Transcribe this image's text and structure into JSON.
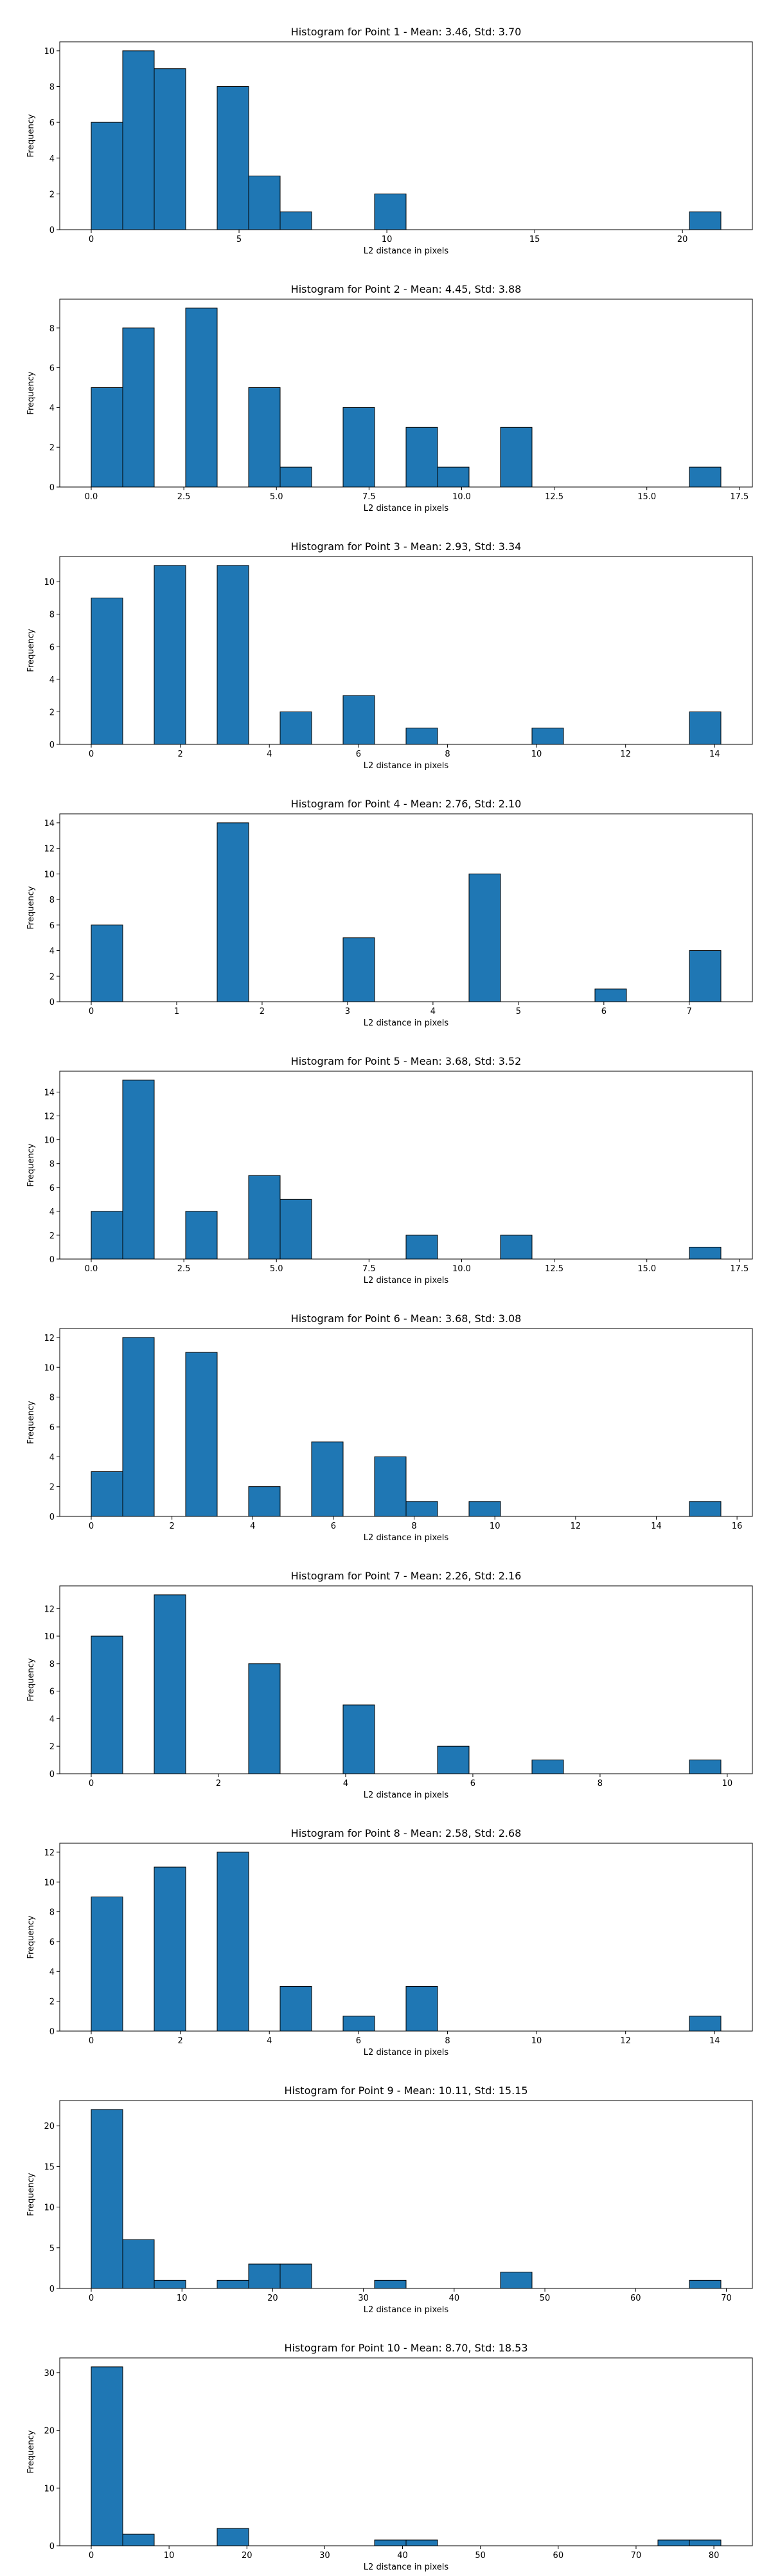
{
  "chart_data": [
    {
      "type": "histogram",
      "title": "Histogram for Point 1 - Mean: 3.46, Std: 3.70",
      "xlabel": "L2 distance in pixels",
      "ylabel": "Frequency",
      "color": "#1f77b4",
      "edgecolor": "#000000",
      "bins": [
        0,
        1.065,
        2.13,
        3.195,
        4.26,
        5.325,
        6.39,
        7.455,
        8.52,
        9.585,
        10.65,
        11.715,
        12.78,
        13.845,
        14.91,
        15.975,
        17.04,
        18.105,
        19.17,
        20.235,
        21.3
      ],
      "values": [
        6,
        10,
        9,
        0,
        8,
        3,
        1,
        0,
        0,
        2,
        0,
        0,
        0,
        0,
        0,
        0,
        0,
        0,
        0,
        1
      ],
      "xlim": [
        -1.065,
        22.365
      ],
      "ylim": [
        0,
        10.5
      ],
      "xticks": [
        0,
        5,
        10,
        15,
        20
      ],
      "yticks": [
        0,
        2,
        4,
        6,
        8,
        10
      ]
    },
    {
      "type": "histogram",
      "title": "Histogram for Point 2 - Mean: 4.45, Std: 3.88",
      "xlabel": "L2 distance in pixels",
      "ylabel": "Frequency",
      "color": "#1f77b4",
      "edgecolor": "#000000",
      "bins": [
        0,
        0.85,
        1.7,
        2.55,
        3.4,
        4.25,
        5.1,
        5.95,
        6.8,
        7.65,
        8.5,
        9.35,
        10.2,
        11.05,
        11.9,
        12.75,
        13.6,
        14.45,
        15.3,
        16.15,
        17
      ],
      "values": [
        5,
        8,
        0,
        9,
        0,
        5,
        1,
        0,
        4,
        0,
        3,
        1,
        0,
        3,
        0,
        0,
        0,
        0,
        0,
        1
      ],
      "xlim": [
        -0.85,
        17.85
      ],
      "ylim": [
        0,
        9.45
      ],
      "xticks": [
        {
          "value": 0,
          "label": "0.0"
        },
        2.5,
        {
          "value": 5,
          "label": "5.0"
        },
        7.5,
        {
          "value": 10,
          "label": "10.0"
        },
        12.5,
        {
          "value": 15,
          "label": "15.0"
        },
        17.5
      ],
      "yticks": [
        0,
        2,
        4,
        6,
        8
      ]
    },
    {
      "type": "histogram",
      "title": "Histogram for Point 3 - Mean: 2.93, Std: 3.34",
      "xlabel": "L2 distance in pixels",
      "ylabel": "Frequency",
      "color": "#1f77b4",
      "edgecolor": "#000000",
      "bins": [
        0,
        0.707,
        1.414,
        2.121,
        2.828,
        3.535,
        4.242,
        4.949,
        5.656,
        6.363,
        7.07,
        7.777,
        8.484,
        9.191,
        9.898,
        10.605,
        11.312,
        12.019,
        12.726,
        13.433,
        14.14
      ],
      "values": [
        9,
        0,
        11,
        0,
        11,
        0,
        2,
        0,
        3,
        0,
        1,
        0,
        0,
        0,
        1,
        0,
        0,
        0,
        0,
        2
      ],
      "xlim": [
        -0.707,
        14.847
      ],
      "ylim": [
        0,
        11.55
      ],
      "xticks": [
        0,
        2,
        4,
        6,
        8,
        10,
        12,
        14
      ],
      "yticks": [
        0,
        2,
        4,
        6,
        8,
        10
      ]
    },
    {
      "type": "histogram",
      "title": "Histogram for Point 4 - Mean: 2.76, Std: 2.10",
      "xlabel": "L2 distance in pixels",
      "ylabel": "Frequency",
      "color": "#1f77b4",
      "edgecolor": "#000000",
      "bins": [
        0,
        0.3685,
        0.737,
        1.1055,
        1.474,
        1.8425,
        2.211,
        2.5795,
        2.948,
        3.3165,
        3.685,
        4.0535,
        4.422,
        4.7905,
        5.159,
        5.5275,
        5.896,
        6.2645,
        6.633,
        7.0015,
        7.37
      ],
      "values": [
        6,
        0,
        0,
        0,
        14,
        0,
        0,
        0,
        5,
        0,
        0,
        0,
        10,
        0,
        0,
        0,
        1,
        0,
        0,
        4
      ],
      "xlim": [
        -0.3685,
        7.7385
      ],
      "ylim": [
        0,
        14.7
      ],
      "xticks": [
        0,
        1,
        2,
        3,
        4,
        5,
        6,
        7
      ],
      "yticks": [
        0,
        2,
        4,
        6,
        8,
        10,
        12,
        14
      ]
    },
    {
      "type": "histogram",
      "title": "Histogram for Point 5 - Mean: 3.68, Std: 3.52",
      "xlabel": "L2 distance in pixels",
      "ylabel": "Frequency",
      "color": "#1f77b4",
      "edgecolor": "#000000",
      "bins": [
        0,
        0.85,
        1.7,
        2.55,
        3.4,
        4.25,
        5.1,
        5.95,
        6.8,
        7.65,
        8.5,
        9.35,
        10.2,
        11.05,
        11.9,
        12.75,
        13.6,
        14.45,
        15.3,
        16.15,
        17
      ],
      "values": [
        4,
        15,
        0,
        4,
        0,
        7,
        5,
        0,
        0,
        0,
        2,
        0,
        0,
        2,
        0,
        0,
        0,
        0,
        0,
        1
      ],
      "xlim": [
        -0.85,
        17.85
      ],
      "ylim": [
        0,
        15.75
      ],
      "xticks": [
        {
          "value": 0,
          "label": "0.0"
        },
        2.5,
        {
          "value": 5,
          "label": "5.0"
        },
        7.5,
        {
          "value": 10,
          "label": "10.0"
        },
        12.5,
        {
          "value": 15,
          "label": "15.0"
        },
        17.5
      ],
      "yticks": [
        0,
        2,
        4,
        6,
        8,
        10,
        12,
        14
      ]
    },
    {
      "type": "histogram",
      "title": "Histogram for Point 6 - Mean: 3.68, Std: 3.08",
      "xlabel": "L2 distance in pixels",
      "ylabel": "Frequency",
      "color": "#1f77b4",
      "edgecolor": "#000000",
      "bins": [
        0,
        0.78,
        1.56,
        2.34,
        3.12,
        3.9,
        4.68,
        5.46,
        6.24,
        7.02,
        7.8,
        8.58,
        9.36,
        10.14,
        10.92,
        11.7,
        12.48,
        13.26,
        14.04,
        14.82,
        15.6
      ],
      "values": [
        3,
        12,
        0,
        11,
        0,
        2,
        0,
        5,
        0,
        4,
        1,
        0,
        1,
        0,
        0,
        0,
        0,
        0,
        0,
        1
      ],
      "xlim": [
        -0.78,
        16.38
      ],
      "ylim": [
        0,
        12.6
      ],
      "xticks": [
        0,
        2,
        4,
        6,
        8,
        10,
        12,
        14,
        16
      ],
      "yticks": [
        0,
        2,
        4,
        6,
        8,
        10,
        12
      ]
    },
    {
      "type": "histogram",
      "title": "Histogram for Point 7 - Mean: 2.26, Std: 2.16",
      "xlabel": "L2 distance in pixels",
      "ylabel": "Frequency",
      "color": "#1f77b4",
      "edgecolor": "#000000",
      "bins": [
        0,
        0.495,
        0.99,
        1.485,
        1.98,
        2.475,
        2.97,
        3.465,
        3.96,
        4.455,
        4.95,
        5.445,
        5.94,
        6.435,
        6.93,
        7.425,
        7.92,
        8.415,
        8.91,
        9.405,
        9.9
      ],
      "values": [
        10,
        0,
        13,
        0,
        0,
        8,
        0,
        0,
        5,
        0,
        0,
        2,
        0,
        0,
        1,
        0,
        0,
        0,
        0,
        1
      ],
      "xlim": [
        -0.495,
        10.395
      ],
      "ylim": [
        0,
        13.65
      ],
      "xticks": [
        0,
        2,
        4,
        6,
        8,
        10
      ],
      "yticks": [
        0,
        2,
        4,
        6,
        8,
        10,
        12
      ]
    },
    {
      "type": "histogram",
      "title": "Histogram for Point 8 - Mean: 2.58, Std: 2.68",
      "xlabel": "L2 distance in pixels",
      "ylabel": "Frequency",
      "color": "#1f77b4",
      "edgecolor": "#000000",
      "bins": [
        0,
        0.707,
        1.414,
        2.121,
        2.828,
        3.535,
        4.242,
        4.949,
        5.656,
        6.363,
        7.07,
        7.777,
        8.484,
        9.191,
        9.898,
        10.605,
        11.312,
        12.019,
        12.726,
        13.433,
        14.14
      ],
      "values": [
        9,
        0,
        11,
        0,
        12,
        0,
        3,
        0,
        1,
        0,
        3,
        0,
        0,
        0,
        0,
        0,
        0,
        0,
        0,
        1
      ],
      "xlim": [
        -0.707,
        14.847
      ],
      "ylim": [
        0,
        12.6
      ],
      "xticks": [
        0,
        2,
        4,
        6,
        8,
        10,
        12,
        14
      ],
      "yticks": [
        0,
        2,
        4,
        6,
        8,
        10,
        12
      ]
    },
    {
      "type": "histogram",
      "title": "Histogram for Point 9 - Mean: 10.11, Std: 15.15",
      "xlabel": "L2 distance in pixels",
      "ylabel": "Frequency",
      "color": "#1f77b4",
      "edgecolor": "#000000",
      "bins": [
        0,
        3.47,
        6.94,
        10.41,
        13.88,
        17.35,
        20.82,
        24.29,
        27.76,
        31.23,
        34.7,
        38.17,
        41.64,
        45.11,
        48.58,
        52.05,
        55.52,
        58.99,
        62.46,
        65.93,
        69.4
      ],
      "values": [
        22,
        6,
        1,
        0,
        1,
        3,
        3,
        0,
        0,
        1,
        0,
        0,
        0,
        2,
        0,
        0,
        0,
        0,
        0,
        1
      ],
      "xlim": [
        -3.47,
        72.87
      ],
      "ylim": [
        0,
        23.1
      ],
      "xticks": [
        0,
        10,
        20,
        30,
        40,
        50,
        60,
        70
      ],
      "yticks": [
        0,
        5,
        10,
        15,
        20
      ]
    },
    {
      "type": "histogram",
      "title": "Histogram for Point 10 - Mean: 8.70, Std: 18.53",
      "xlabel": "L2 distance in pixels",
      "ylabel": "Frequency",
      "color": "#1f77b4",
      "edgecolor": "#000000",
      "bins": [
        0,
        4.045,
        8.09,
        12.135,
        16.18,
        20.225,
        24.27,
        28.315,
        32.36,
        36.405,
        40.45,
        44.495,
        48.54,
        52.585,
        56.63,
        60.675,
        64.72,
        68.765,
        72.81,
        76.855,
        80.9
      ],
      "values": [
        31,
        2,
        0,
        0,
        3,
        0,
        0,
        0,
        0,
        1,
        1,
        0,
        0,
        0,
        0,
        0,
        0,
        0,
        1,
        1
      ],
      "xlim": [
        -4.045,
        84.945
      ],
      "ylim": [
        0,
        32.55
      ],
      "xticks": [
        0,
        10,
        20,
        30,
        40,
        50,
        60,
        70,
        80
      ],
      "yticks": [
        0,
        10,
        20,
        30
      ]
    }
  ]
}
